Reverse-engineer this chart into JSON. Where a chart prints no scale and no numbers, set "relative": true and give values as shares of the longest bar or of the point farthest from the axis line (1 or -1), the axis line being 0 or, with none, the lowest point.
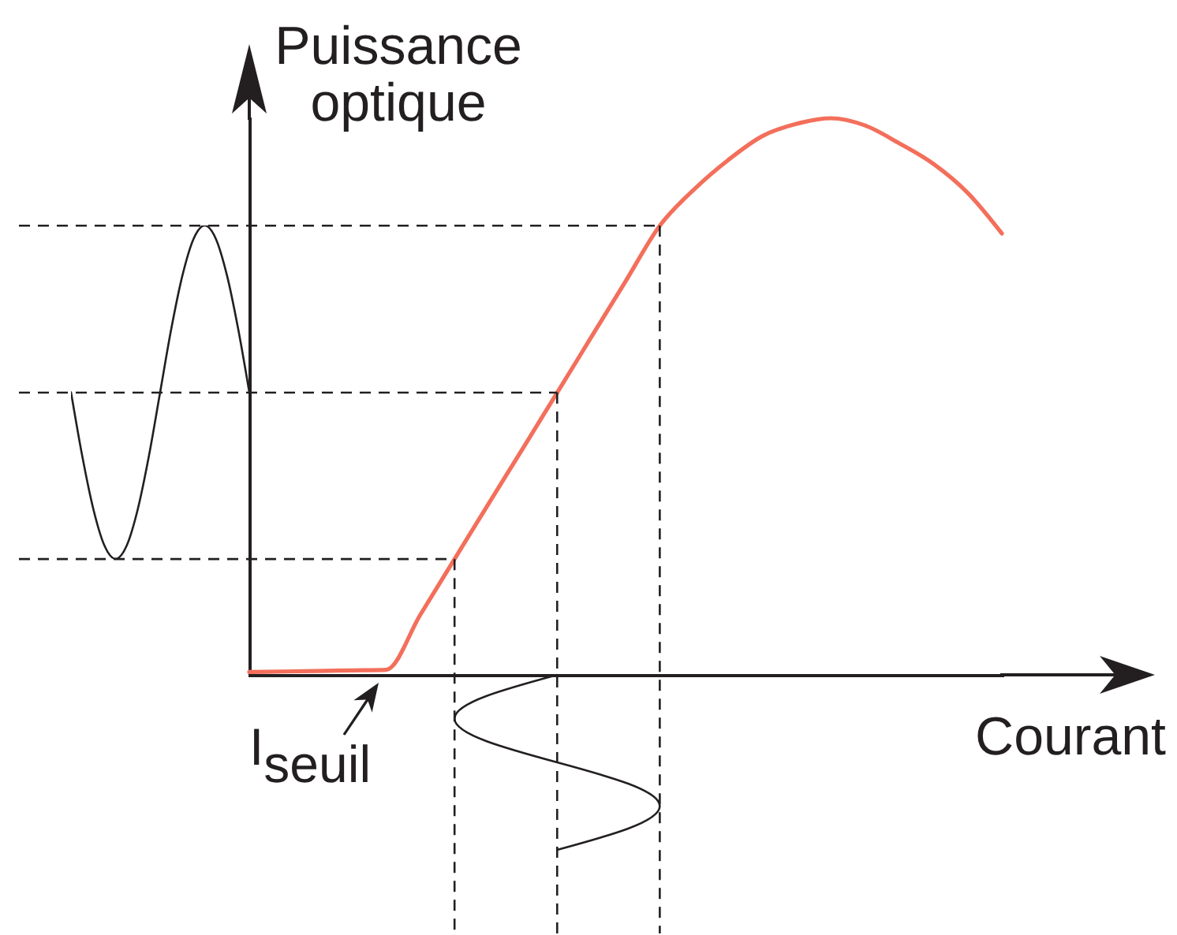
{
  "chart_data": [
    {
      "type": "line",
      "xlabel": "Courant",
      "ylabel": "Puissance optique",
      "categories": [
        null,
        null,
        null,
        null,
        null,
        null,
        null,
        null,
        null,
        null,
        null,
        null,
        null,
        null,
        null,
        null,
        null,
        null,
        null,
        null,
        null,
        null,
        null
      ],
      "values": [
        0.005,
        0.006,
        0.007,
        0.008,
        0.009,
        0.108,
        0.208,
        0.308,
        0.407,
        0.507,
        0.607,
        0.707,
        0.807,
        0.872,
        0.925,
        0.968,
        0.99,
        1,
        0.987,
        0.955,
        0.918,
        0.866,
        0.793
      ],
      "color": "#f36f5b",
      "relative": true,
      "ref_lines": [
        {
          "axis": "y",
          "value": 0.807,
          "color": "#231f20",
          "line_style": "dashed"
        },
        {
          "axis": "y",
          "value": 0.507,
          "color": "#231f20",
          "line_style": "dashed"
        },
        {
          "axis": "y",
          "value": 0.208,
          "color": "#231f20",
          "line_style": "dashed"
        }
      ],
      "annotations": [
        "I$_{seuil}$"
      ]
    },
    {
      "type": "line",
      "categories": [
        null,
        null,
        null,
        null,
        null,
        null,
        null,
        null,
        null,
        null,
        null,
        null,
        null,
        null,
        null,
        null,
        null
      ],
      "values": [
        0.5,
        0.31,
        0.15,
        0.04,
        0,
        0.04,
        0.15,
        0.31,
        0.5,
        0.69,
        0.85,
        0.96,
        1,
        0.96,
        0.85,
        0.69,
        0.5
      ],
      "color": "#231f20",
      "relative": true
    }
  ]
}
